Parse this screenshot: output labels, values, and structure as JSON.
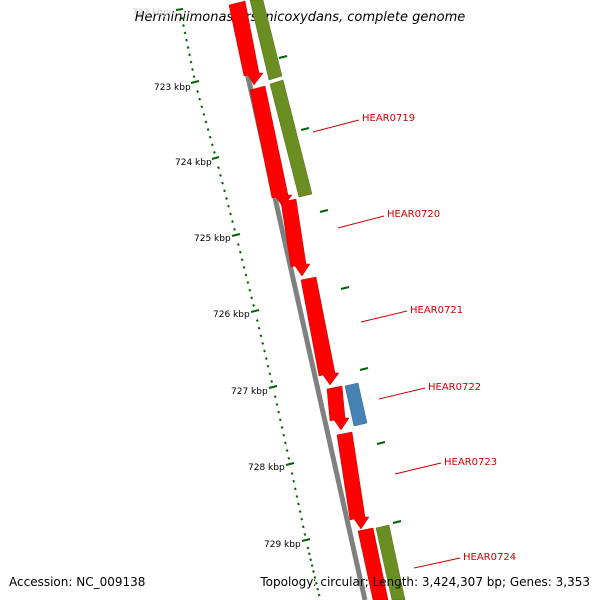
{
  "title": "Herminiimonas arsenicoxydans, complete genome",
  "accession": "Accession: NC_009138",
  "summary": "Topology: circular; Length: 3,424,307 bp; Genes: 3,353",
  "colors": {
    "cds_red": "#ff0000",
    "cds_green": "#6b8e23",
    "cds_blue": "#4682b4",
    "backbone": "#808080",
    "tick": "#006400",
    "label": "#cc0000"
  },
  "ruler": {
    "labels": [
      "722 kbp",
      "723 kbp",
      "724 kbp",
      "725 kbp",
      "726 kbp",
      "727 kbp",
      "728 kbp",
      "729 kbp"
    ]
  },
  "genes": [
    {
      "id": "HEAR0719"
    },
    {
      "id": "HEAR0720"
    },
    {
      "id": "HEAR0721"
    },
    {
      "id": "HEAR0722"
    },
    {
      "id": "HEAR0723"
    },
    {
      "id": "HEAR0724"
    }
  ]
}
